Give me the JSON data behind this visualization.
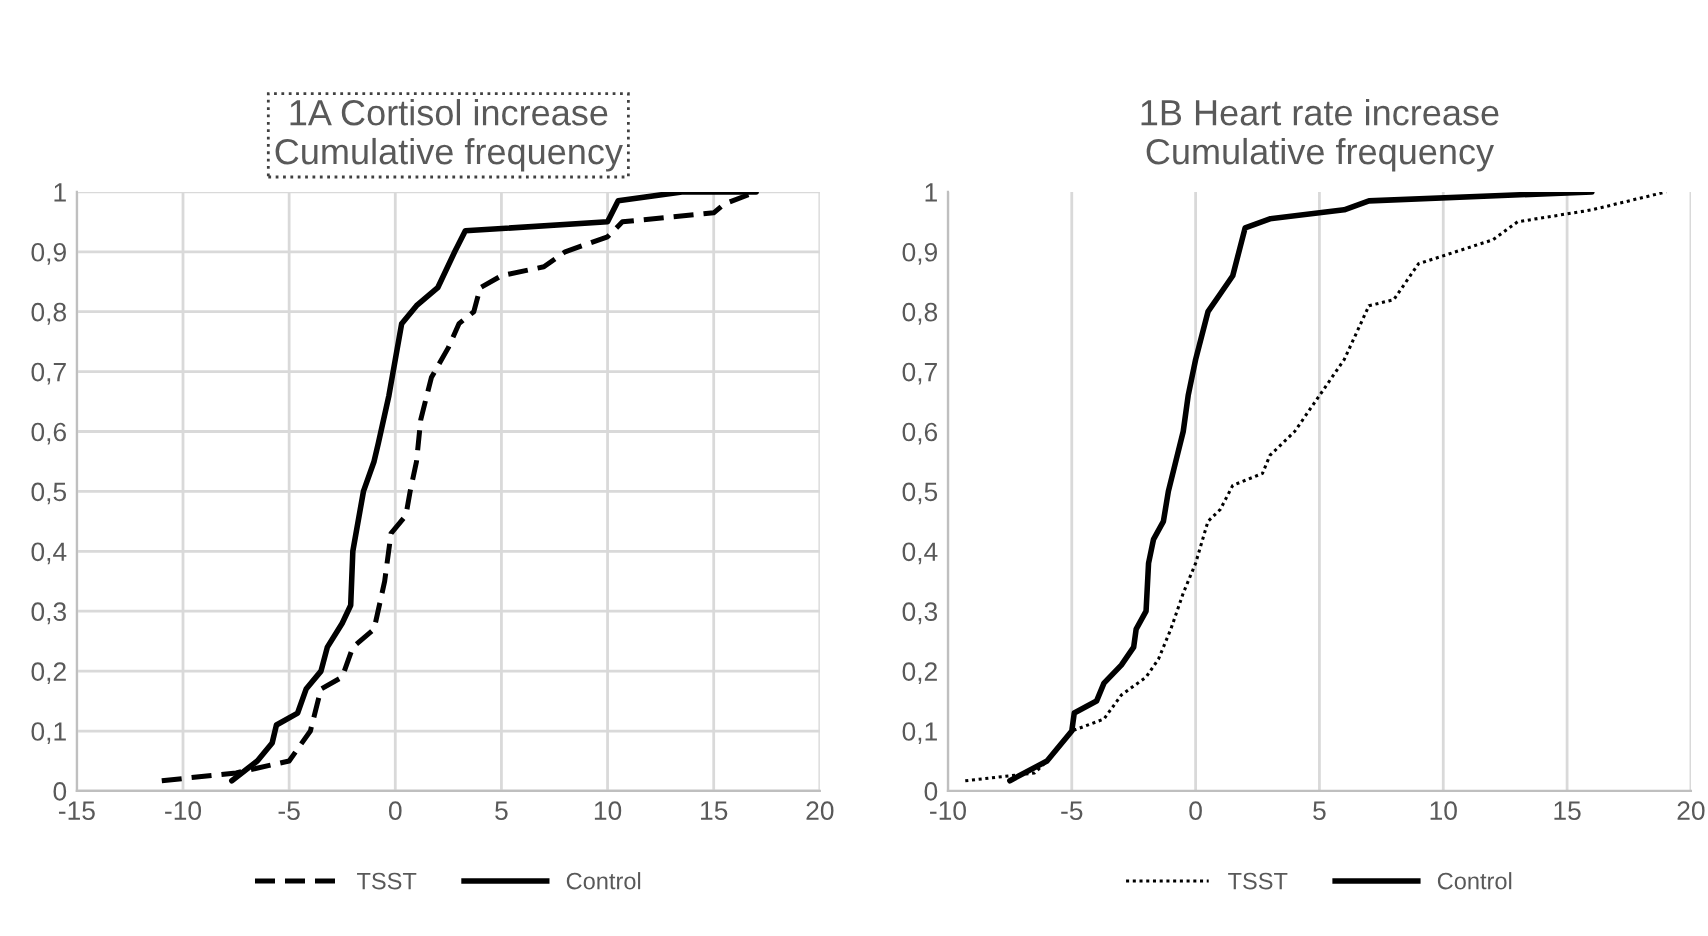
{
  "chart_data": [
    {
      "type": "line",
      "title": "1A Cortisol increase\nCumulative frequency",
      "xlim": [
        -15,
        20
      ],
      "xticks": [
        -15,
        -10,
        -5,
        0,
        5,
        10,
        15,
        20
      ],
      "ylim": [
        0,
        1
      ],
      "yticks": [
        0,
        {
          "value": 0.1,
          "label": "0,1"
        },
        {
          "value": 0.2,
          "label": "0,2"
        },
        {
          "value": 0.3,
          "label": "0,3"
        },
        {
          "value": 0.4,
          "label": "0,4"
        },
        {
          "value": 0.5,
          "label": "0,5"
        },
        {
          "value": 0.6,
          "label": "0,6"
        },
        {
          "value": 0.7,
          "label": "0,7"
        },
        {
          "value": 0.8,
          "label": "0,8"
        },
        {
          "value": 0.9,
          "label": "0,9"
        },
        1
      ],
      "grid": true,
      "legend": "bottom",
      "marker": "none",
      "series": [
        {
          "name": "TSST",
          "color": "#000000",
          "line_style": "dashed",
          "x": [
            -11,
            -7.5,
            -5,
            -4,
            -3.5,
            -2.5,
            -2,
            -1,
            -0.5,
            -0.2,
            0.5,
            0.7,
            1,
            1.2,
            1.7,
            2.5,
            3,
            3.7,
            4,
            5,
            7,
            8,
            10,
            10.7,
            15,
            15.5,
            17
          ],
          "values": [
            0.017,
            0.03,
            0.05,
            0.1,
            0.17,
            0.19,
            0.24,
            0.27,
            0.35,
            0.43,
            0.46,
            0.5,
            0.55,
            0.62,
            0.69,
            0.74,
            0.78,
            0.8,
            0.84,
            0.86,
            0.875,
            0.9,
            0.925,
            0.95,
            0.965,
            0.98,
            1
          ]
        },
        {
          "name": "Control",
          "color": "#000000",
          "line_style": "solid",
          "x": [
            -7.7,
            -6.5,
            -5.8,
            -5.6,
            -4.6,
            -4.2,
            -3.5,
            -3.2,
            -2.5,
            -2.1,
            -2,
            -1.5,
            -1,
            -0.8,
            -0.3,
            0,
            0.3,
            1,
            2,
            2.8,
            3.3,
            10,
            10.5,
            13.5,
            17
          ],
          "values": [
            0.017,
            0.05,
            0.08,
            0.11,
            0.13,
            0.17,
            0.2,
            0.24,
            0.28,
            0.31,
            0.4,
            0.5,
            0.55,
            0.58,
            0.66,
            0.72,
            0.78,
            0.81,
            0.84,
            0.9,
            0.935,
            0.95,
            0.985,
            1,
            1
          ]
        }
      ]
    },
    {
      "type": "line",
      "title": "1B Heart rate increase\nCumulative frequency",
      "xlim": [
        -10,
        20
      ],
      "xticks": [
        -10,
        -5,
        0,
        5,
        10,
        15,
        20
      ],
      "ylim": [
        0,
        1
      ],
      "yticks": [
        0,
        {
          "value": 0.1,
          "label": "0,1"
        },
        {
          "value": 0.2,
          "label": "0,2"
        },
        {
          "value": 0.3,
          "label": "0,3"
        },
        {
          "value": 0.4,
          "label": "0,4"
        },
        {
          "value": 0.5,
          "label": "0,5"
        },
        {
          "value": 0.6,
          "label": "0,6"
        },
        {
          "value": 0.7,
          "label": "0,7"
        },
        {
          "value": 0.8,
          "label": "0,8"
        },
        {
          "value": 0.9,
          "label": "0,9"
        },
        1
      ],
      "grid": "x",
      "legend": "bottom",
      "marker": "none",
      "series": [
        {
          "name": "TSST",
          "color": "#000000",
          "line_style": "dotted",
          "x": [
            -9.3,
            -6.5,
            -6,
            -5,
            -3.7,
            -3,
            -2,
            -1.5,
            -1,
            -0.5,
            0,
            0.5,
            1,
            1.5,
            2.7,
            3,
            4,
            5,
            6,
            7,
            8,
            9,
            12,
            13,
            16,
            19
          ],
          "values": [
            0.017,
            0.03,
            0.05,
            0.1,
            0.12,
            0.16,
            0.19,
            0.22,
            0.27,
            0.33,
            0.38,
            0.45,
            0.47,
            0.51,
            0.53,
            0.56,
            0.6,
            0.66,
            0.72,
            0.81,
            0.82,
            0.88,
            0.92,
            0.95,
            0.97,
            1
          ]
        },
        {
          "name": "Control",
          "color": "#000000",
          "line_style": "solid",
          "x": [
            -7.5,
            -6,
            -5,
            -4.9,
            -4,
            -3.7,
            -3,
            -2.5,
            -2.4,
            -2,
            -1.9,
            -1.7,
            -1.3,
            -1.1,
            -0.8,
            -0.5,
            -0.3,
            0,
            0.5,
            1,
            1.5,
            2,
            3,
            6,
            7,
            16
          ],
          "values": [
            0.017,
            0.05,
            0.1,
            0.13,
            0.15,
            0.18,
            0.21,
            0.24,
            0.27,
            0.3,
            0.38,
            0.42,
            0.45,
            0.5,
            0.55,
            0.6,
            0.66,
            0.72,
            0.8,
            0.83,
            0.86,
            0.94,
            0.955,
            0.97,
            0.985,
            1
          ]
        }
      ]
    }
  ]
}
